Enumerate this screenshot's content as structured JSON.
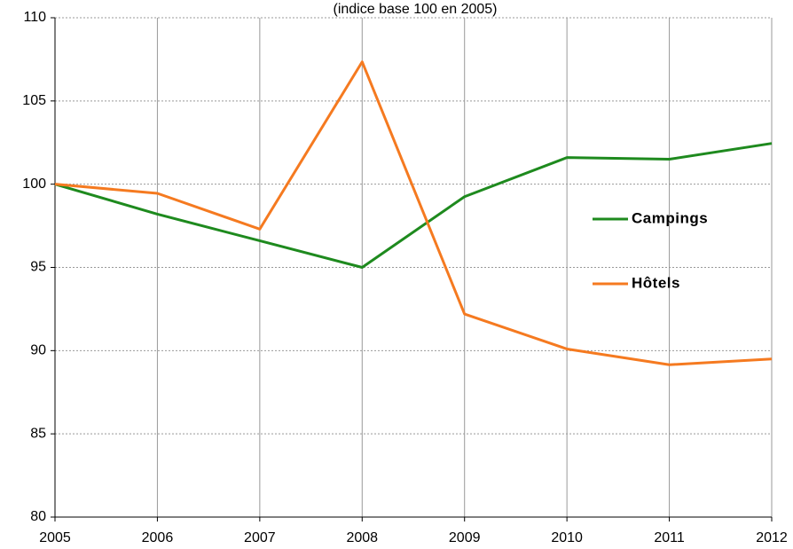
{
  "chart_data": {
    "type": "line",
    "subtitle": "(indice base 100 en 2005)",
    "x": [
      2005,
      2006,
      2007,
      2008,
      2009,
      2010,
      2011,
      2012
    ],
    "xlim": [
      2005,
      2012
    ],
    "xticks": [
      2005,
      2006,
      2007,
      2008,
      2009,
      2010,
      2011,
      2012
    ],
    "ylim": [
      80,
      110
    ],
    "yticks": [
      80,
      85,
      90,
      95,
      100,
      105,
      110
    ],
    "grid": true,
    "series": [
      {
        "name": "Campings",
        "color": "#1e8a1e",
        "values": [
          100,
          98.2,
          96.6,
          95.0,
          99.25,
          101.6,
          101.5,
          102.45
        ]
      },
      {
        "name": "Hôtels",
        "color": "#f57a20",
        "values": [
          100,
          99.45,
          97.3,
          107.35,
          92.2,
          90.1,
          89.15,
          89.5
        ]
      }
    ]
  }
}
